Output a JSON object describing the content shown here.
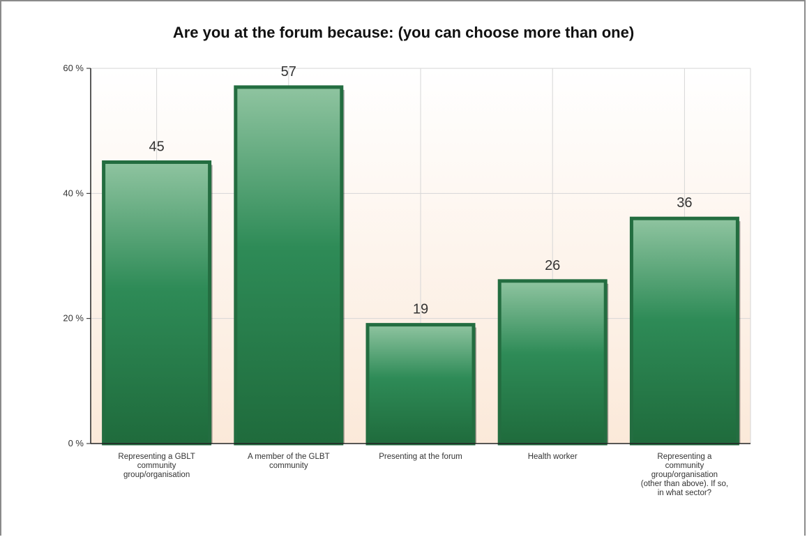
{
  "chart_data": {
    "type": "bar",
    "title": "Are you at the forum because: (you can choose more than one)",
    "categories": [
      [
        "Representing a GBLT",
        "community",
        "group/organisation"
      ],
      [
        "A member of the GLBT",
        "community"
      ],
      [
        "Presenting at the forum"
      ],
      [
        "Health worker"
      ],
      [
        "Representing a",
        "community",
        "group/organisation",
        "(other than above). If so,",
        "in what sector?"
      ]
    ],
    "values": [
      45,
      57,
      19,
      26,
      36
    ],
    "value_labels": [
      "45",
      "57",
      "19",
      "26",
      "36"
    ],
    "y_ticks": [
      "0 %",
      "20 %",
      "40 %",
      "60 %"
    ],
    "y_tick_values": [
      0,
      20,
      40,
      60
    ],
    "ylim": [
      0,
      60
    ],
    "grid": true,
    "colors": {
      "bar_dark": "#1f6b3c",
      "bar_mid": "#2e8b57",
      "bar_light": "#8fc4a0",
      "bar_border": "#236d40",
      "grid": "#d6d6d6",
      "bg_top": "#ffffff",
      "bg_bottom": "#fbe9d9"
    }
  }
}
